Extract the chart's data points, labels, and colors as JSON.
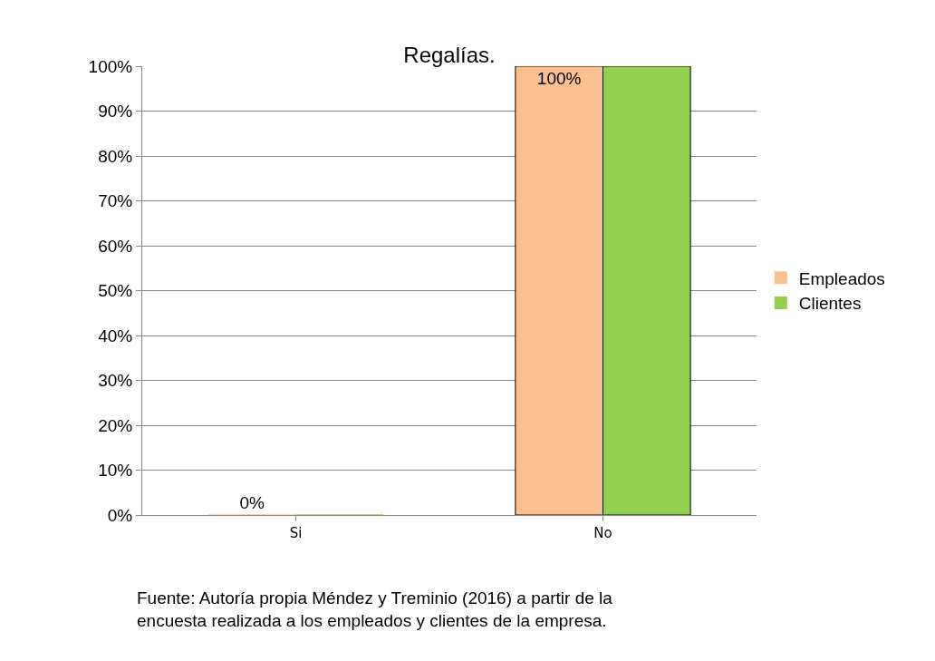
{
  "chart_data": {
    "type": "bar",
    "title": "Regalías.",
    "categories": [
      "Si",
      "No"
    ],
    "series": [
      {
        "name": "Empleados",
        "color": "#fac090",
        "values": [
          0,
          100
        ],
        "value_labels": [
          "0%",
          "100%"
        ]
      },
      {
        "name": "Clientes",
        "color": "#92d050",
        "values": [
          0,
          100
        ]
      }
    ],
    "ylim": [
      0,
      100
    ],
    "yticks": [
      {
        "value": 0,
        "label": "0%"
      },
      {
        "value": 10,
        "label": "10%"
      },
      {
        "value": 20,
        "label": "20%"
      },
      {
        "value": 30,
        "label": "30%"
      },
      {
        "value": 40,
        "label": "40%"
      },
      {
        "value": 50,
        "label": "50%"
      },
      {
        "value": 60,
        "label": "60%"
      },
      {
        "value": 70,
        "label": "70%"
      },
      {
        "value": 80,
        "label": "80%"
      },
      {
        "value": 90,
        "label": "90%"
      },
      {
        "value": 100,
        "label": "100%"
      }
    ],
    "grid": "y",
    "legend": "right",
    "annotations": [
      "Fuente: Autoría propia Méndez y Treminio (2016) a partir de la encuesta realizada a los empleados y clientes de la empresa."
    ]
  }
}
